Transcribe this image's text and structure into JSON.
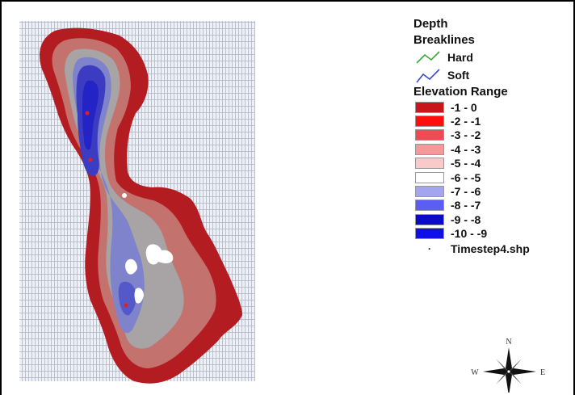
{
  "legend": {
    "title": "Depth",
    "breaklines_heading": "Breaklines",
    "breaklines": [
      {
        "label": "Hard",
        "color": "#3aa83a"
      },
      {
        "label": "Soft",
        "color": "#3a4ad0"
      }
    ],
    "range_heading": "Elevation Range",
    "classes": [
      {
        "label": "-1 - 0",
        "color": "#c8161a"
      },
      {
        "label": "-2 - -1",
        "color": "#ff0e0e"
      },
      {
        "label": "-3 - -2",
        "color": "#ee4b55"
      },
      {
        "label": "-4 - -3",
        "color": "#f7979a"
      },
      {
        "label": "-5 - -4",
        "color": "#f8caca"
      },
      {
        "label": "-6 - -5",
        "color": "#ffffff"
      },
      {
        "label": "-7 - -6",
        "color": "#a3a6ee"
      },
      {
        "label": "-8 - -7",
        "color": "#5a5ef5"
      },
      {
        "label": "-9 - -8",
        "color": "#0a0ac8"
      },
      {
        "label": "-10 - -9",
        "color": "#1010e6"
      }
    ],
    "point_layer": "Timestep4.shp"
  },
  "compass": {
    "n": "N",
    "w": "W",
    "e": "E"
  },
  "colors": {
    "grid_line": "#b8bed8",
    "grid_bg": "#e9ebf4",
    "outer": "#b31d22",
    "mid": "#c4736f",
    "gray": "#a8a3a5",
    "lake": "#7e83cc",
    "deep": "#3c3cc2",
    "deepest": "#2020c8"
  }
}
